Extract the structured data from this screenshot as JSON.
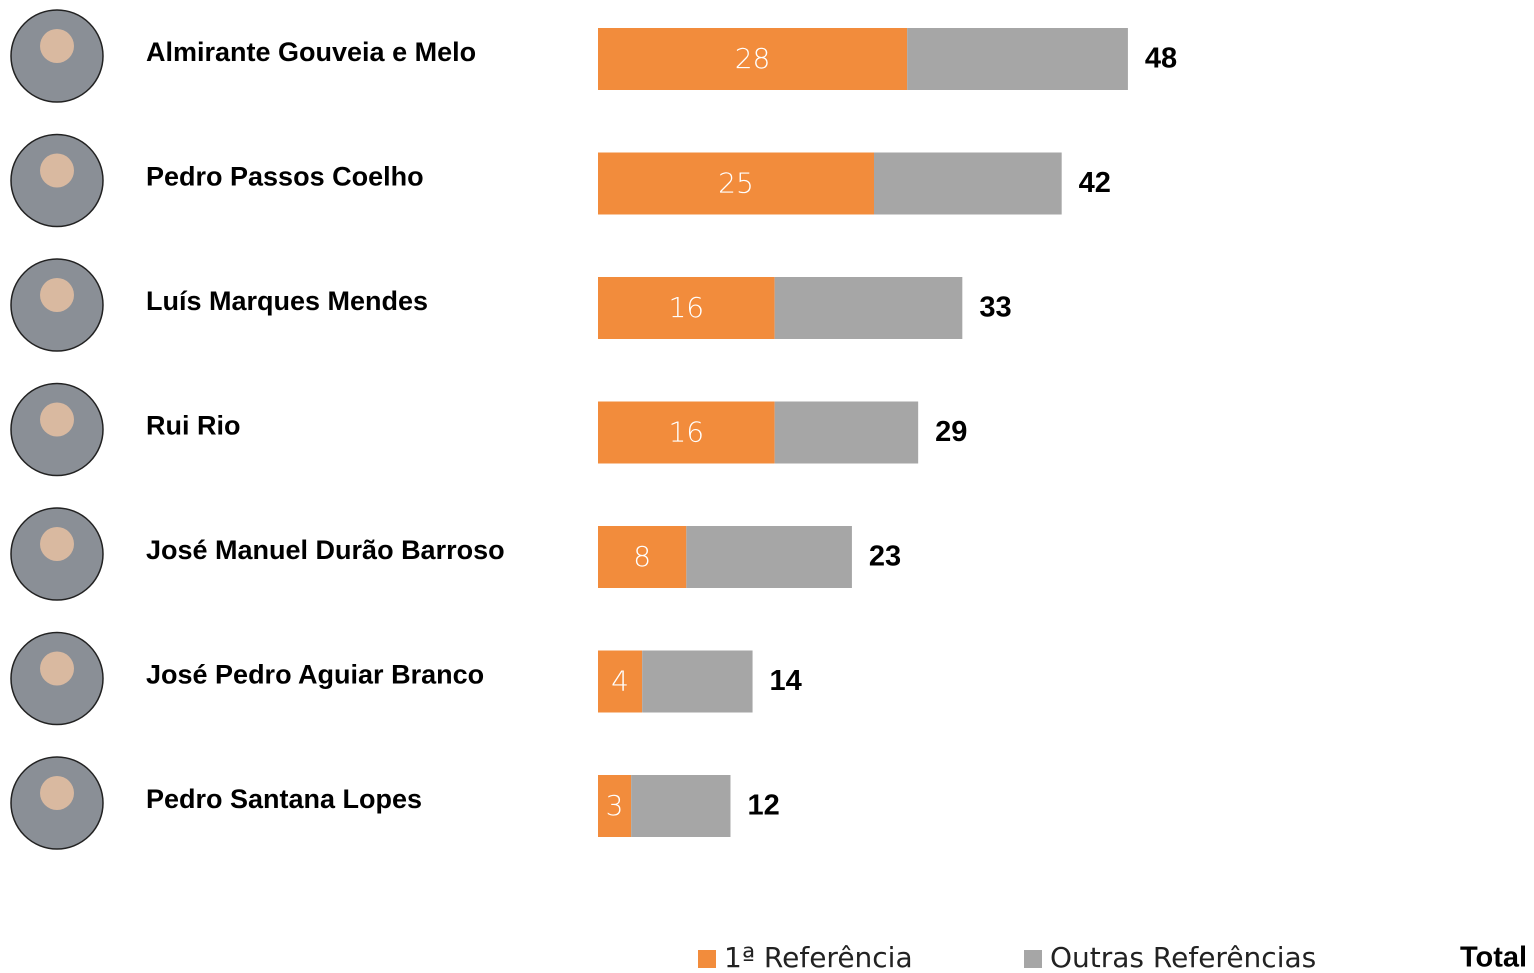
{
  "chart_data": {
    "type": "stacked-bar-horizontal",
    "categories": [
      "Almirante Gouveia e Melo",
      "Pedro Passos Coelho",
      "Luís Marques Mendes",
      "Rui Rio",
      "José Manuel Durão Barroso",
      "José Pedro Aguiar Branco",
      "Pedro Santana Lopes"
    ],
    "series": [
      {
        "name": "1ª Referência",
        "color": "#f28c3c",
        "values": [
          28,
          25,
          16,
          16,
          8,
          4,
          3
        ]
      },
      {
        "name": "Outras Referências",
        "color": "#a6a6a6",
        "values": [
          20,
          17,
          17,
          13,
          15,
          10,
          9
        ]
      }
    ],
    "totals_name": "Total",
    "totals": [
      48,
      42,
      33,
      29,
      23,
      14,
      12
    ]
  }
}
